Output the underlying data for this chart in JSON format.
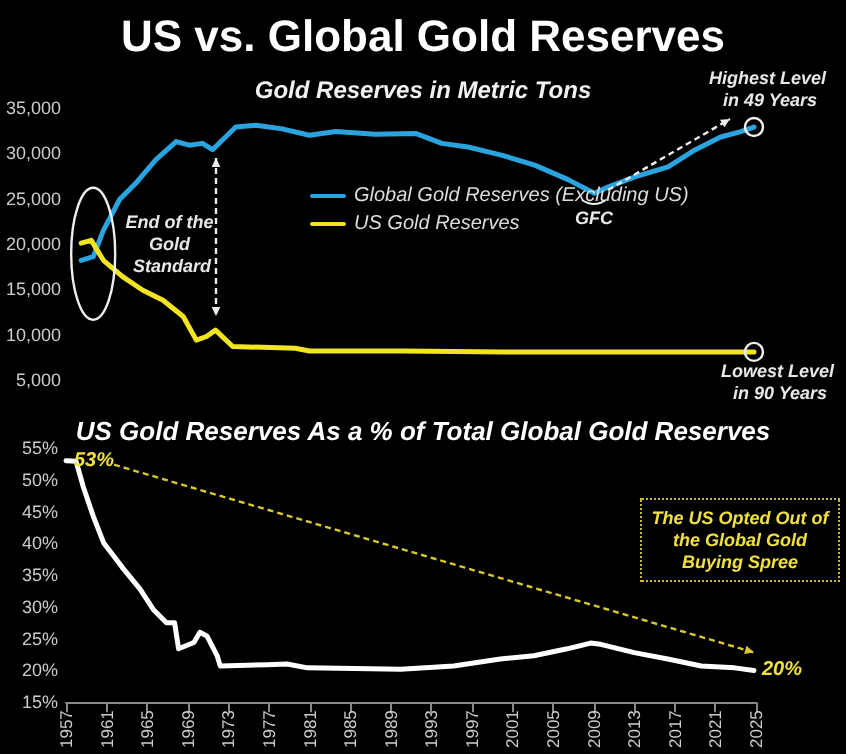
{
  "chart_data": [
    {
      "type": "line",
      "title": "US vs. Global Gold Reserves",
      "subtitle": "Gold Reserves in Metric Tons",
      "xlim": [
        1957,
        2025
      ],
      "ylim": [
        5000,
        35000
      ],
      "yticks": [
        {
          "value": 5000,
          "label": "5,000"
        },
        {
          "value": 10000,
          "label": "10,000"
        },
        {
          "value": 15000,
          "label": "15,000"
        },
        {
          "value": 20000,
          "label": "20,000"
        },
        {
          "value": 25000,
          "label": "25,000"
        },
        {
          "value": 30000,
          "label": "30,000"
        },
        {
          "value": 35000,
          "label": "35,000"
        }
      ],
      "tick_labels": "y",
      "grid": false,
      "legend": "center",
      "marker": "none",
      "series": [
        {
          "name": "Global Gold Reserves (Excluding US)",
          "color": "#2aa4de",
          "x": [
            1958.2,
            1959.4,
            1960.4,
            1962,
            1963.6,
            1965.6,
            1967.6,
            1968.9,
            1970.2,
            1971.2,
            1973.5,
            1975.5,
            1978.1,
            1980.8,
            1983.4,
            1987.3,
            1991.3,
            1993.9,
            1996.5,
            1999.8,
            2003.1,
            2006.4,
            2009,
            2010.4,
            2013,
            2016.3,
            2019,
            2021.5,
            2023.5,
            2024.8
          ],
          "values": [
            18200,
            18600,
            21500,
            24900,
            26700,
            29300,
            31300,
            30900,
            31100,
            30400,
            32900,
            33100,
            32700,
            32000,
            32400,
            32100,
            32200,
            31100,
            30700,
            29800,
            28700,
            27100,
            25600,
            26300,
            27400,
            28500,
            30400,
            31800,
            32400,
            32900
          ]
        },
        {
          "name": "US Gold Reserves",
          "color": "#f2e422",
          "x": [
            1958.2,
            1959.2,
            1960.4,
            1962.3,
            1964.3,
            1966.3,
            1968.3,
            1969.6,
            1970.6,
            1971.5,
            1973.2,
            1979.4,
            1980.8,
            1990,
            2000,
            2010,
            2024.8
          ],
          "values": [
            20100,
            20400,
            18200,
            16400,
            14900,
            13800,
            12000,
            9400,
            9800,
            10500,
            8700,
            8500,
            8200,
            8200,
            8100,
            8100,
            8100
          ]
        }
      ],
      "annotations": [
        "End of the Gold Standard",
        "GFC",
        {
          "text": "Highest Level in 49 Years",
          "x": 2024.8,
          "y": 32900
        },
        "Lowest Level in 90 Years"
      ]
    },
    {
      "type": "line",
      "title": "US Gold Reserves As a % of Total Global Gold Reserves",
      "xlim": [
        1957,
        2025
      ],
      "xticks": [
        1957,
        1961,
        1965,
        1969,
        1973,
        1977,
        1981,
        1985,
        1989,
        1993,
        1997,
        2001,
        2005,
        2009,
        2013,
        2017,
        2021,
        2025
      ],
      "ylim": [
        15,
        55
      ],
      "yticks": [
        {
          "value": 15,
          "label": "15%"
        },
        {
          "value": 20,
          "label": "20%"
        },
        {
          "value": 25,
          "label": "25%"
        },
        {
          "value": 30,
          "label": "30%"
        },
        {
          "value": 35,
          "label": "35%"
        },
        {
          "value": 40,
          "label": "40%"
        },
        {
          "value": 45,
          "label": "45%"
        },
        {
          "value": 50,
          "label": "50%"
        },
        {
          "value": 55,
          "label": "55%"
        }
      ],
      "grid": false,
      "legend": false,
      "marker": "none",
      "series": [
        {
          "color": "#ffffff",
          "x": [
            1957,
            1958,
            1958.7,
            1959.7,
            1960.7,
            1961.7,
            1962.7,
            1964.3,
            1965.6,
            1966.9,
            1967.7,
            1968.1,
            1969.6,
            1970.2,
            1970.9,
            1971.9,
            1972.2,
            1976.8,
            1978.8,
            1980.8,
            1990,
            1995.2,
            1999.8,
            2003.1,
            2006.4,
            2008.7,
            2009.7,
            2013,
            2016.3,
            2019.6,
            2022.9,
            2024.8
          ],
          "values": [
            53,
            52.9,
            48.9,
            44.2,
            40.1,
            38,
            35.9,
            32.8,
            29.6,
            27.5,
            27.5,
            23.4,
            24.4,
            26,
            25.4,
            22.3,
            20.7,
            20.9,
            21,
            20.4,
            20.2,
            20.7,
            21.8,
            22.3,
            23.4,
            24.3,
            24.1,
            22.8,
            21.8,
            20.7,
            20.4,
            20
          ],
          "value_labels": [
            "53%",
            null,
            null,
            null,
            null,
            null,
            null,
            null,
            null,
            null,
            null,
            null,
            null,
            null,
            null,
            null,
            null,
            null,
            null,
            null,
            null,
            null,
            null,
            null,
            null,
            null,
            null,
            null,
            null,
            null,
            null,
            "20%"
          ]
        }
      ],
      "annotations": [
        "The US Opted Out of the Global Gold Buying Spree"
      ]
    }
  ]
}
